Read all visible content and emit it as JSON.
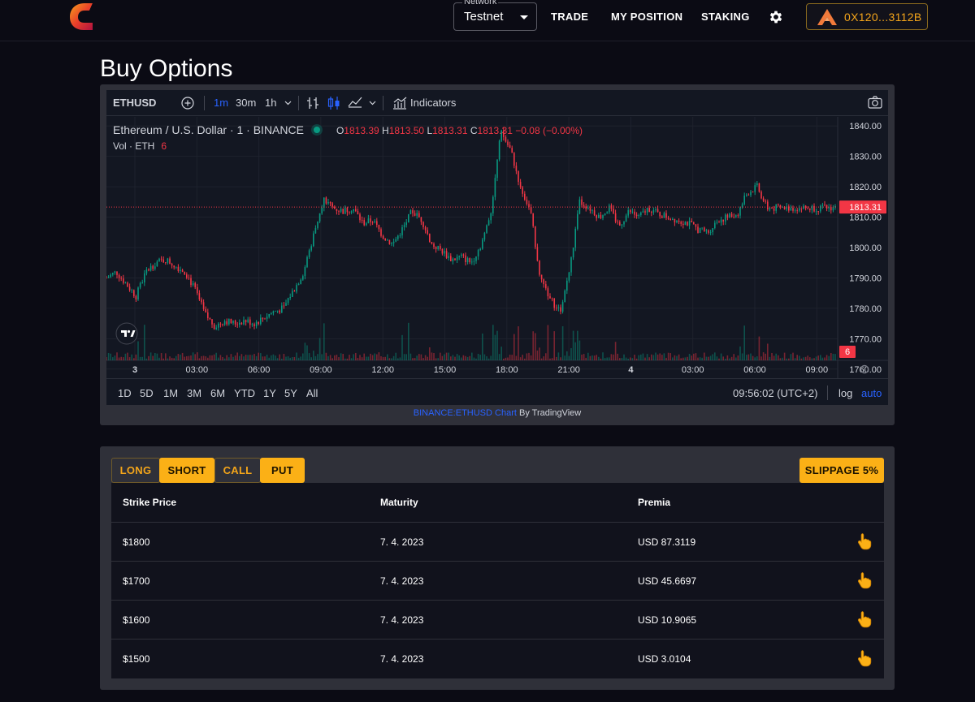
{
  "header": {
    "network_label": "Network",
    "network_value": "Testnet",
    "nav": [
      "TRADE",
      "MY POSITION",
      "STAKING"
    ],
    "wallet": "0X120...3112B",
    "accent": "#f4a51a"
  },
  "page_title": "Buy Options",
  "tradingview": {
    "symbol": "ETHUSD",
    "intervals": [
      "1m",
      "30m",
      "1h"
    ],
    "indicators_label": "Indicators",
    "legend_title": "Ethereum / U.S. Dollar · 1 · BINANCE",
    "ohlc": {
      "o_key": "O",
      "o": "1813.39",
      "h_key": "H",
      "h": "1813.50",
      "l_key": "L",
      "l": "1813.31",
      "c_key": "C",
      "c": "1813.31",
      "change": "−0.08 (−0.00%)"
    },
    "vol_label": "Vol · ETH",
    "vol_value": "6",
    "price_badge": "1813.31",
    "vol_badge": "6",
    "ranges": [
      "1D",
      "5D",
      "1M",
      "3M",
      "6M",
      "YTD",
      "1Y",
      "5Y",
      "All"
    ],
    "clock": "09:56:02 (UTC+2)",
    "log": "log",
    "auto": "auto",
    "credit_link": "BINANCE:ETHUSD Chart",
    "credit_rest": " By TradingView"
  },
  "chart_data": {
    "type": "candlestick",
    "title": "Ethereum / U.S. Dollar · 1 · BINANCE",
    "x_ticks": [
      "3",
      "03:00",
      "06:00",
      "09:00",
      "12:00",
      "15:00",
      "18:00",
      "21:00",
      "4",
      "03:00",
      "06:00",
      "09:00"
    ],
    "y_ticks": [
      1840,
      1830,
      1820,
      1810,
      1800,
      1790,
      1780,
      1770,
      1760
    ],
    "ylim": [
      1757,
      1843
    ],
    "x": [
      0,
      0.5,
      1,
      1.5,
      2,
      2.5,
      3,
      3.5,
      4,
      4.5,
      5,
      5.5,
      6,
      6.5,
      7,
      7.5,
      8,
      8.5,
      9,
      9.2,
      9.5,
      10,
      10.5,
      11,
      11.5,
      12,
      12.5,
      13,
      13.5,
      14,
      14.5,
      15,
      15.5,
      16,
      16.5,
      17,
      17.5,
      18,
      18.5,
      19,
      19.5,
      20,
      20.5,
      21,
      21.5,
      22,
      22.5,
      23,
      23.5,
      24,
      24.5,
      25,
      25.5,
      26,
      26.5,
      27,
      27.5,
      28,
      28.5,
      29,
      29.5,
      30,
      30.5,
      31,
      31.5,
      32,
      32.5,
      33,
      33.5,
      34,
      34.5,
      35,
      35.5,
      36,
      36.5,
      37
    ],
    "close": [
      1790,
      1792,
      1788,
      1784,
      1792,
      1795,
      1796,
      1794,
      1792,
      1786,
      1778,
      1774,
      1776,
      1775,
      1776,
      1775,
      1777,
      1779,
      1780,
      1783,
      1786,
      1792,
      1804,
      1816,
      1813,
      1812,
      1813,
      1808,
      1809,
      1804,
      1801,
      1806,
      1812,
      1809,
      1801,
      1799,
      1796,
      1797,
      1795,
      1801,
      1812,
      1838,
      1832,
      1820,
      1812,
      1790,
      1783,
      1779,
      1793,
      1815,
      1813,
      1810,
      1813,
      1807,
      1812,
      1810,
      1813,
      1811,
      1810,
      1809,
      1808,
      1806,
      1805,
      1809,
      1810,
      1811,
      1818,
      1820,
      1813,
      1813,
      1813,
      1813,
      1813,
      1813,
      1813,
      1813.31
    ],
    "last_price": 1813.31,
    "volume_series": "Vol · ETH",
    "last_volume": 6
  },
  "options": {
    "side": [
      "LONG",
      "SHORT"
    ],
    "kind": [
      "CALL",
      "PUT"
    ],
    "slippage": "SLIPPAGE 5%",
    "columns": [
      "Strike Price",
      "Maturity",
      "Premia"
    ],
    "rows": [
      {
        "strike": "$1800",
        "maturity": "7. 4. 2023",
        "premia": "USD 87.3119"
      },
      {
        "strike": "$1700",
        "maturity": "7. 4. 2023",
        "premia": "USD 45.6697"
      },
      {
        "strike": "$1600",
        "maturity": "7. 4. 2023",
        "premia": "USD 10.9065"
      },
      {
        "strike": "$1500",
        "maturity": "7. 4. 2023",
        "premia": "USD 3.0104"
      }
    ]
  },
  "colors": {
    "up": "#089981",
    "down": "#f23645",
    "accent": "#fbb016",
    "brand_red": "#e02b3a"
  }
}
